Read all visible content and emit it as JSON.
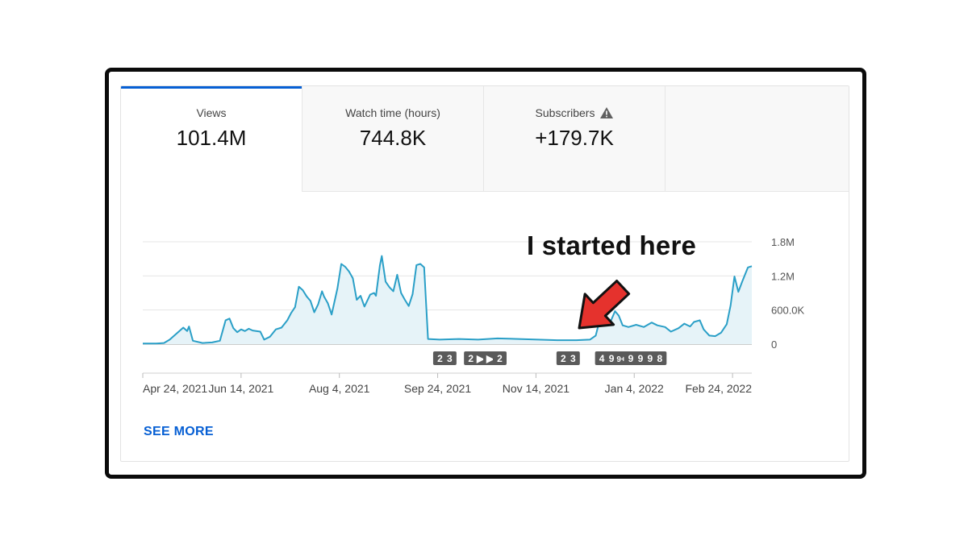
{
  "tabs": [
    {
      "label": "Views",
      "value": "101.4M"
    },
    {
      "label": "Watch time (hours)",
      "value": "744.8K"
    },
    {
      "label": "Subscribers",
      "value": "+179.7K",
      "icon": "warning-icon"
    }
  ],
  "see_more": "SEE MORE",
  "annotation": "I started here",
  "colors": {
    "accent": "#065fd4",
    "line": "#2a9fc7",
    "fill": "#e6f3f8",
    "arrow": "#e5322d"
  },
  "chart_data": {
    "type": "area",
    "title": "",
    "xlabel": "",
    "ylabel": "",
    "y_ticks": [
      "1.8M",
      "1.2M",
      "600.0K",
      "0"
    ],
    "ylim": [
      0,
      1800000
    ],
    "x_labels": [
      "Apr 24, 2021",
      "Jun 14, 2021",
      "Aug 4, 2021",
      "Sep 24, 2021",
      "Nov 14, 2021",
      "Jan 4, 2022",
      "Feb 24, 2022"
    ],
    "series": [
      {
        "points": [
          [
            "2021-04-24",
            10000
          ],
          [
            "2021-05-01",
            10000
          ],
          [
            "2021-05-05",
            20000
          ],
          [
            "2021-05-08",
            80000
          ],
          [
            "2021-05-12",
            200000
          ],
          [
            "2021-05-15",
            290000
          ],
          [
            "2021-05-17",
            230000
          ],
          [
            "2021-05-18",
            310000
          ],
          [
            "2021-05-20",
            60000
          ],
          [
            "2021-05-25",
            20000
          ],
          [
            "2021-05-30",
            30000
          ],
          [
            "2021-06-03",
            60000
          ],
          [
            "2021-06-06",
            420000
          ],
          [
            "2021-06-08",
            450000
          ],
          [
            "2021-06-10",
            280000
          ],
          [
            "2021-06-12",
            210000
          ],
          [
            "2021-06-14",
            260000
          ],
          [
            "2021-06-16",
            230000
          ],
          [
            "2021-06-18",
            270000
          ],
          [
            "2021-06-20",
            240000
          ],
          [
            "2021-06-24",
            220000
          ],
          [
            "2021-06-26",
            80000
          ],
          [
            "2021-06-29",
            130000
          ],
          [
            "2021-07-02",
            260000
          ],
          [
            "2021-07-05",
            290000
          ],
          [
            "2021-07-08",
            420000
          ],
          [
            "2021-07-10",
            550000
          ],
          [
            "2021-07-12",
            650000
          ],
          [
            "2021-07-14",
            1010000
          ],
          [
            "2021-07-16",
            950000
          ],
          [
            "2021-07-18",
            840000
          ],
          [
            "2021-07-20",
            760000
          ],
          [
            "2021-07-22",
            560000
          ],
          [
            "2021-07-24",
            700000
          ],
          [
            "2021-07-26",
            930000
          ],
          [
            "2021-07-27",
            840000
          ],
          [
            "2021-07-29",
            720000
          ],
          [
            "2021-07-31",
            520000
          ],
          [
            "2021-08-03",
            980000
          ],
          [
            "2021-08-05",
            1410000
          ],
          [
            "2021-08-07",
            1360000
          ],
          [
            "2021-08-09",
            1280000
          ],
          [
            "2021-08-11",
            1160000
          ],
          [
            "2021-08-13",
            780000
          ],
          [
            "2021-08-15",
            850000
          ],
          [
            "2021-08-17",
            660000
          ],
          [
            "2021-08-20",
            870000
          ],
          [
            "2021-08-22",
            900000
          ],
          [
            "2021-08-23",
            850000
          ],
          [
            "2021-08-25",
            1380000
          ],
          [
            "2021-08-26",
            1550000
          ],
          [
            "2021-08-28",
            1100000
          ],
          [
            "2021-08-30",
            1000000
          ],
          [
            "2021-09-01",
            930000
          ],
          [
            "2021-09-03",
            1220000
          ],
          [
            "2021-09-05",
            900000
          ],
          [
            "2021-09-07",
            780000
          ],
          [
            "2021-09-09",
            670000
          ],
          [
            "2021-09-11",
            880000
          ],
          [
            "2021-09-13",
            1390000
          ],
          [
            "2021-09-15",
            1410000
          ],
          [
            "2021-09-17",
            1350000
          ],
          [
            "2021-09-19",
            90000
          ],
          [
            "2021-09-25",
            80000
          ],
          [
            "2021-10-05",
            90000
          ],
          [
            "2021-10-15",
            80000
          ],
          [
            "2021-10-25",
            100000
          ],
          [
            "2021-11-05",
            90000
          ],
          [
            "2021-11-15",
            80000
          ],
          [
            "2021-11-25",
            70000
          ],
          [
            "2021-12-05",
            70000
          ],
          [
            "2021-12-12",
            80000
          ],
          [
            "2021-12-15",
            150000
          ],
          [
            "2021-12-18",
            540000
          ],
          [
            "2021-12-19",
            670000
          ],
          [
            "2021-12-21",
            350000
          ],
          [
            "2021-12-23",
            420000
          ],
          [
            "2021-12-25",
            580000
          ],
          [
            "2021-12-27",
            500000
          ],
          [
            "2021-12-29",
            330000
          ],
          [
            "2022-01-01",
            300000
          ],
          [
            "2022-01-05",
            340000
          ],
          [
            "2022-01-09",
            300000
          ],
          [
            "2022-01-13",
            380000
          ],
          [
            "2022-01-16",
            330000
          ],
          [
            "2022-01-20",
            300000
          ],
          [
            "2022-01-23",
            220000
          ],
          [
            "2022-01-27",
            280000
          ],
          [
            "2022-01-30",
            360000
          ],
          [
            "2022-02-02",
            310000
          ],
          [
            "2022-02-04",
            390000
          ],
          [
            "2022-02-07",
            420000
          ],
          [
            "2022-02-09",
            260000
          ],
          [
            "2022-02-12",
            150000
          ],
          [
            "2022-02-15",
            140000
          ],
          [
            "2022-02-18",
            200000
          ],
          [
            "2022-02-21",
            350000
          ],
          [
            "2022-02-23",
            680000
          ],
          [
            "2022-02-25",
            1190000
          ],
          [
            "2022-02-27",
            920000
          ],
          [
            "2022-03-01",
            1100000
          ],
          [
            "2022-03-04",
            1350000
          ],
          [
            "2022-03-06",
            1370000
          ]
        ]
      }
    ]
  },
  "markers": [
    {
      "label": "2",
      "date": "2021-09-25"
    },
    {
      "label": "3",
      "date": "2021-09-30"
    },
    {
      "label": "2",
      "date": "2021-10-11"
    },
    {
      "label": "▶",
      "date": "2021-10-16"
    },
    {
      "label": "▶",
      "date": "2021-10-21"
    },
    {
      "label": "2",
      "date": "2021-10-26"
    },
    {
      "label": "2",
      "date": "2021-11-28"
    },
    {
      "label": "3",
      "date": "2021-12-03"
    },
    {
      "label": "4",
      "date": "2021-12-18"
    },
    {
      "label": "9",
      "date": "2021-12-23"
    },
    {
      "label": "9+",
      "date": "2021-12-28"
    },
    {
      "label": "9",
      "date": "2022-01-02"
    },
    {
      "label": "9",
      "date": "2022-01-07"
    },
    {
      "label": "9",
      "date": "2022-01-12"
    },
    {
      "label": "8",
      "date": "2022-01-17"
    }
  ]
}
